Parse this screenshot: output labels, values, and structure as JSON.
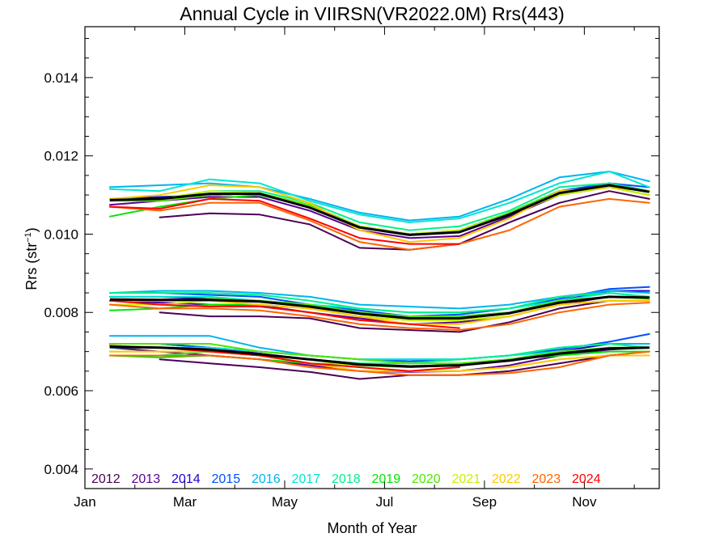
{
  "chart_data": {
    "type": "line",
    "title": "Annual Cycle in VIIRSN(VR2022.0M) Rrs(443)",
    "xlabel": "Month of Year",
    "ylabel": "Rrs (str⁻¹)",
    "ylabel_main": "Rrs (str",
    "ylabel_sup": "−1",
    "ylabel_close": ")",
    "x_ticks": [
      "Jan",
      "Mar",
      "May",
      "Jul",
      "Sep",
      "Nov"
    ],
    "x_tick_positions": [
      0,
      2,
      4,
      6,
      8,
      10
    ],
    "xlim": [
      0,
      11.5
    ],
    "y_ticks": [
      "0.004",
      "0.006",
      "0.008",
      "0.010",
      "0.012",
      "0.014"
    ],
    "y_tick_values": [
      0.004,
      0.006,
      0.008,
      0.01,
      0.012,
      0.014
    ],
    "ylim": [
      0.0035,
      0.0153
    ],
    "x": [
      0.5,
      1.5,
      2.5,
      3.5,
      4.5,
      5.5,
      6.5,
      7.5,
      8.5,
      9.5,
      10.5,
      11.3
    ],
    "series": [
      {
        "name": "2012",
        "color": "#4b0055",
        "upper": [
          null,
          0.01043,
          0.01053,
          0.0105,
          0.01025,
          0.00965,
          0.0096,
          0.00975,
          0.0103,
          0.0108,
          0.0111,
          0.0109
        ],
        "middle": [
          null,
          0.008,
          0.0079,
          0.0079,
          0.00785,
          0.0076,
          0.00755,
          0.0075,
          0.00775,
          0.0081,
          0.0083,
          0.0083
        ],
        "lower": [
          null,
          0.0068,
          0.0067,
          0.0066,
          0.00648,
          0.0063,
          0.0064,
          0.0064,
          0.0065,
          0.0067,
          0.0069,
          0.007
        ]
      },
      {
        "name": "2013",
        "color": "#5a0096",
        "upper": [
          0.01075,
          0.01085,
          0.01095,
          0.01095,
          0.0106,
          0.0101,
          0.0099,
          0.00995,
          0.01045,
          0.011,
          0.0112,
          0.0111
        ],
        "middle": [
          0.0083,
          0.00825,
          0.0082,
          0.00818,
          0.008,
          0.00785,
          0.0077,
          0.00775,
          0.0079,
          0.0082,
          0.0084,
          0.0084
        ],
        "lower": [
          0.0071,
          0.007,
          0.0069,
          0.0068,
          0.00665,
          0.0065,
          0.00648,
          0.0065,
          0.00665,
          0.0069,
          0.00705,
          0.0071
        ]
      },
      {
        "name": "2014",
        "color": "#1e00d2",
        "upper": [
          0.0109,
          0.01095,
          0.011,
          0.01105,
          0.0107,
          0.0102,
          0.01,
          0.01005,
          0.01055,
          0.0111,
          0.0113,
          0.0111
        ],
        "middle": [
          0.0084,
          0.0084,
          0.00835,
          0.0083,
          0.0082,
          0.008,
          0.00785,
          0.0079,
          0.008,
          0.0083,
          0.00855,
          0.00855
        ],
        "lower": [
          0.0072,
          0.0072,
          0.0071,
          0.00695,
          0.0068,
          0.0067,
          0.0066,
          0.00665,
          0.0068,
          0.007,
          0.0072,
          0.0072
        ]
      },
      {
        "name": "2015",
        "color": "#0050ff",
        "upper": [
          0.01085,
          0.0109,
          0.011,
          0.01105,
          0.0107,
          0.0102,
          0.01,
          0.01005,
          0.0105,
          0.0111,
          0.0113,
          0.0112
        ],
        "middle": [
          0.0085,
          0.0085,
          0.00845,
          0.0084,
          0.0082,
          0.00805,
          0.0079,
          0.00795,
          0.0081,
          0.00835,
          0.0086,
          0.00865
        ],
        "lower": [
          0.0072,
          0.0072,
          0.0071,
          0.007,
          0.0069,
          0.0068,
          0.00675,
          0.0068,
          0.0069,
          0.00705,
          0.00725,
          0.00745
        ]
      },
      {
        "name": "2016",
        "color": "#00b4f0",
        "upper": [
          0.0112,
          0.01125,
          0.0113,
          0.0112,
          0.0109,
          0.01055,
          0.01035,
          0.01045,
          0.0109,
          0.01145,
          0.0116,
          0.01135
        ],
        "middle": [
          0.0085,
          0.00855,
          0.00855,
          0.0085,
          0.0084,
          0.0082,
          0.00815,
          0.0081,
          0.0082,
          0.0084,
          0.00855,
          0.0085
        ],
        "lower": [
          0.0074,
          0.0074,
          0.0074,
          0.0071,
          0.0069,
          0.0068,
          0.0068,
          0.0068,
          0.0069,
          0.0071,
          0.0072,
          0.0072
        ]
      },
      {
        "name": "2017",
        "color": "#00e6d2",
        "upper": [
          0.01115,
          0.0111,
          0.0114,
          0.0113,
          0.01085,
          0.0105,
          0.0103,
          0.0104,
          0.0108,
          0.0113,
          0.0116,
          0.0112
        ],
        "middle": [
          0.0084,
          0.0084,
          0.0084,
          0.0083,
          0.0082,
          0.0081,
          0.008,
          0.008,
          0.0081,
          0.0083,
          0.0085,
          0.0084
        ],
        "lower": [
          0.0071,
          0.0071,
          0.0071,
          0.007,
          0.0069,
          0.0068,
          0.0068,
          0.0068,
          0.0069,
          0.007,
          0.0071,
          0.0071
        ]
      },
      {
        "name": "2018",
        "color": "#00f08c",
        "upper": [
          0.0109,
          0.0109,
          0.0111,
          0.0111,
          0.0108,
          0.0103,
          0.0101,
          0.0102,
          0.0106,
          0.0112,
          0.0113,
          0.0111
        ],
        "middle": [
          0.0085,
          0.0085,
          0.0085,
          0.00845,
          0.0083,
          0.0081,
          0.008,
          0.008,
          0.0081,
          0.0084,
          0.0085,
          0.0084
        ],
        "lower": [
          0.0069,
          0.0069,
          0.007,
          0.0069,
          0.0068,
          0.0067,
          0.0067,
          0.0068,
          0.0069,
          0.0071,
          0.0072,
          0.0071
        ]
      },
      {
        "name": "2019",
        "color": "#00e600",
        "upper": [
          0.01045,
          0.0107,
          0.0109,
          0.011,
          0.0107,
          0.0102,
          0.01,
          0.0101,
          0.0105,
          0.0111,
          0.0112,
          0.011
        ],
        "middle": [
          0.00805,
          0.0081,
          0.0082,
          0.0082,
          0.0081,
          0.0079,
          0.0078,
          0.0078,
          0.0079,
          0.0082,
          0.0083,
          0.0083
        ],
        "lower": [
          0.0069,
          0.00685,
          0.0069,
          0.0068,
          0.0067,
          0.00665,
          0.0066,
          0.0067,
          0.0068,
          0.0069,
          0.007,
          0.007
        ]
      },
      {
        "name": "2020",
        "color": "#50e600",
        "upper": [
          0.01085,
          0.01085,
          0.011,
          0.01105,
          0.01075,
          0.0102,
          0.01,
          0.0101,
          0.01055,
          0.0111,
          0.0112,
          0.011
        ],
        "middle": [
          0.0083,
          0.0083,
          0.00835,
          0.0083,
          0.0082,
          0.008,
          0.0079,
          0.0079,
          0.008,
          0.0083,
          0.0084,
          0.00835
        ],
        "lower": [
          0.0072,
          0.0072,
          0.0072,
          0.007,
          0.0069,
          0.0068,
          0.0067,
          0.0067,
          0.0068,
          0.007,
          0.0071,
          0.0071
        ]
      },
      {
        "name": "2021",
        "color": "#c8f000",
        "upper": [
          0.01085,
          0.0109,
          0.0111,
          0.01105,
          0.0107,
          0.0102,
          0.01,
          0.0101,
          0.0105,
          0.011,
          0.0112,
          0.011
        ],
        "middle": [
          0.0082,
          0.0082,
          0.0083,
          0.0082,
          0.0081,
          0.0079,
          0.0078,
          0.0078,
          0.0079,
          0.0082,
          0.0083,
          0.0083
        ],
        "lower": [
          0.007,
          0.007,
          0.007,
          0.0069,
          0.0068,
          0.0066,
          0.0065,
          0.0065,
          0.0066,
          0.0068,
          0.0069,
          0.007
        ]
      },
      {
        "name": "2022",
        "color": "#ffc800",
        "upper": [
          0.0109,
          0.011,
          0.01125,
          0.0112,
          0.0108,
          0.0101,
          0.0098,
          0.0099,
          0.0104,
          0.0111,
          0.0112,
          0.0111
        ],
        "middle": [
          0.0083,
          0.0083,
          0.0083,
          0.0082,
          0.0081,
          0.0079,
          0.0077,
          0.0077,
          0.0079,
          0.0082,
          0.0083,
          0.0083
        ],
        "lower": [
          0.007,
          0.007,
          0.007,
          0.0069,
          0.0067,
          0.0065,
          0.0065,
          0.0065,
          0.0066,
          0.0068,
          0.0069,
          0.0069
        ]
      },
      {
        "name": "2023",
        "color": "#ff6400",
        "upper": [
          0.0107,
          0.0106,
          0.0108,
          0.0108,
          0.01035,
          0.0098,
          0.0096,
          0.00975,
          0.0101,
          0.0107,
          0.0109,
          0.0108
        ],
        "middle": [
          0.0082,
          0.0081,
          0.0081,
          0.00805,
          0.0079,
          0.0077,
          0.0076,
          0.00755,
          0.0077,
          0.008,
          0.0082,
          0.00825
        ],
        "lower": [
          0.0069,
          0.0069,
          0.0069,
          0.0068,
          0.0066,
          0.0065,
          0.0064,
          0.0064,
          0.00645,
          0.0066,
          0.0069,
          0.007
        ]
      },
      {
        "name": "2024",
        "color": "#ff0000",
        "upper": [
          0.0107,
          0.01065,
          0.0109,
          0.01085,
          0.0104,
          0.0099,
          0.00975,
          0.00975,
          null,
          null,
          null,
          null
        ],
        "middle": [
          0.0083,
          0.0082,
          0.00815,
          0.00815,
          0.008,
          0.0078,
          0.0077,
          0.0076,
          null,
          null,
          null,
          null
        ],
        "lower": [
          0.00715,
          0.0071,
          0.007,
          0.0069,
          0.0067,
          0.0066,
          0.0065,
          0.0066,
          null,
          null,
          null,
          null
        ]
      }
    ],
    "climatology": {
      "color": "#000000",
      "upper": [
        0.01087,
        0.0109,
        0.01103,
        0.01103,
        0.01068,
        0.01017,
        0.00998,
        0.01005,
        0.0105,
        0.01105,
        0.01125,
        0.01108
      ],
      "middle": [
        0.00833,
        0.00832,
        0.00832,
        0.00828,
        0.00815,
        0.00797,
        0.00785,
        0.00785,
        0.00798,
        0.00825,
        0.0084,
        0.00838
      ],
      "lower": [
        0.00712,
        0.0071,
        0.00705,
        0.00693,
        0.0068,
        0.00667,
        0.00662,
        0.00665,
        0.00677,
        0.00695,
        0.00708,
        0.0071
      ]
    },
    "legend_placement": "bottom-left",
    "grid": false
  }
}
